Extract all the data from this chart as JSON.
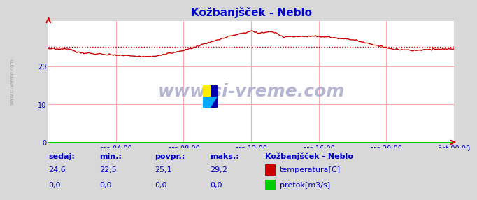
{
  "title": "Kožbanjšček - Neblo",
  "title_color": "#0000cc",
  "bg_color": "#d8d8d8",
  "plot_bg_color": "#ffffff",
  "grid_color": "#ffaaaa",
  "axis_color": "#cc0000",
  "text_color": "#0000cc",
  "ylim": [
    0,
    32
  ],
  "yticks": [
    0,
    10,
    20
  ],
  "xtick_labels": [
    "sre 04:00",
    "sre 08:00",
    "sre 12:00",
    "sre 16:00",
    "sre 20:00",
    "čet 00:00"
  ],
  "xtick_positions": [
    0.167,
    0.333,
    0.5,
    0.667,
    0.833,
    1.0
  ],
  "avg_line_value": 25.1,
  "avg_line_color": "#cc0000",
  "temp_line_color": "#cc0000",
  "flow_line_color": "#00cc00",
  "watermark_text": "www.si-vreme.com",
  "watermark_color": "#aaaacc",
  "legend_title": "Kožbanjšček - Neblo",
  "legend_entries": [
    "temperatura[C]",
    "pretok[m3/s]"
  ],
  "legend_colors": [
    "#cc0000",
    "#00cc00"
  ],
  "footer_labels": [
    "sedaj:",
    "min.:",
    "povpr.:",
    "maks.:"
  ],
  "footer_values_temp": [
    "24,6",
    "22,5",
    "25,1",
    "29,2"
  ],
  "footer_values_flow": [
    "0,0",
    "0,0",
    "0,0",
    "0,0"
  ],
  "sidebar_text": "www.si-vreme.com",
  "sidebar_color": "#888888"
}
